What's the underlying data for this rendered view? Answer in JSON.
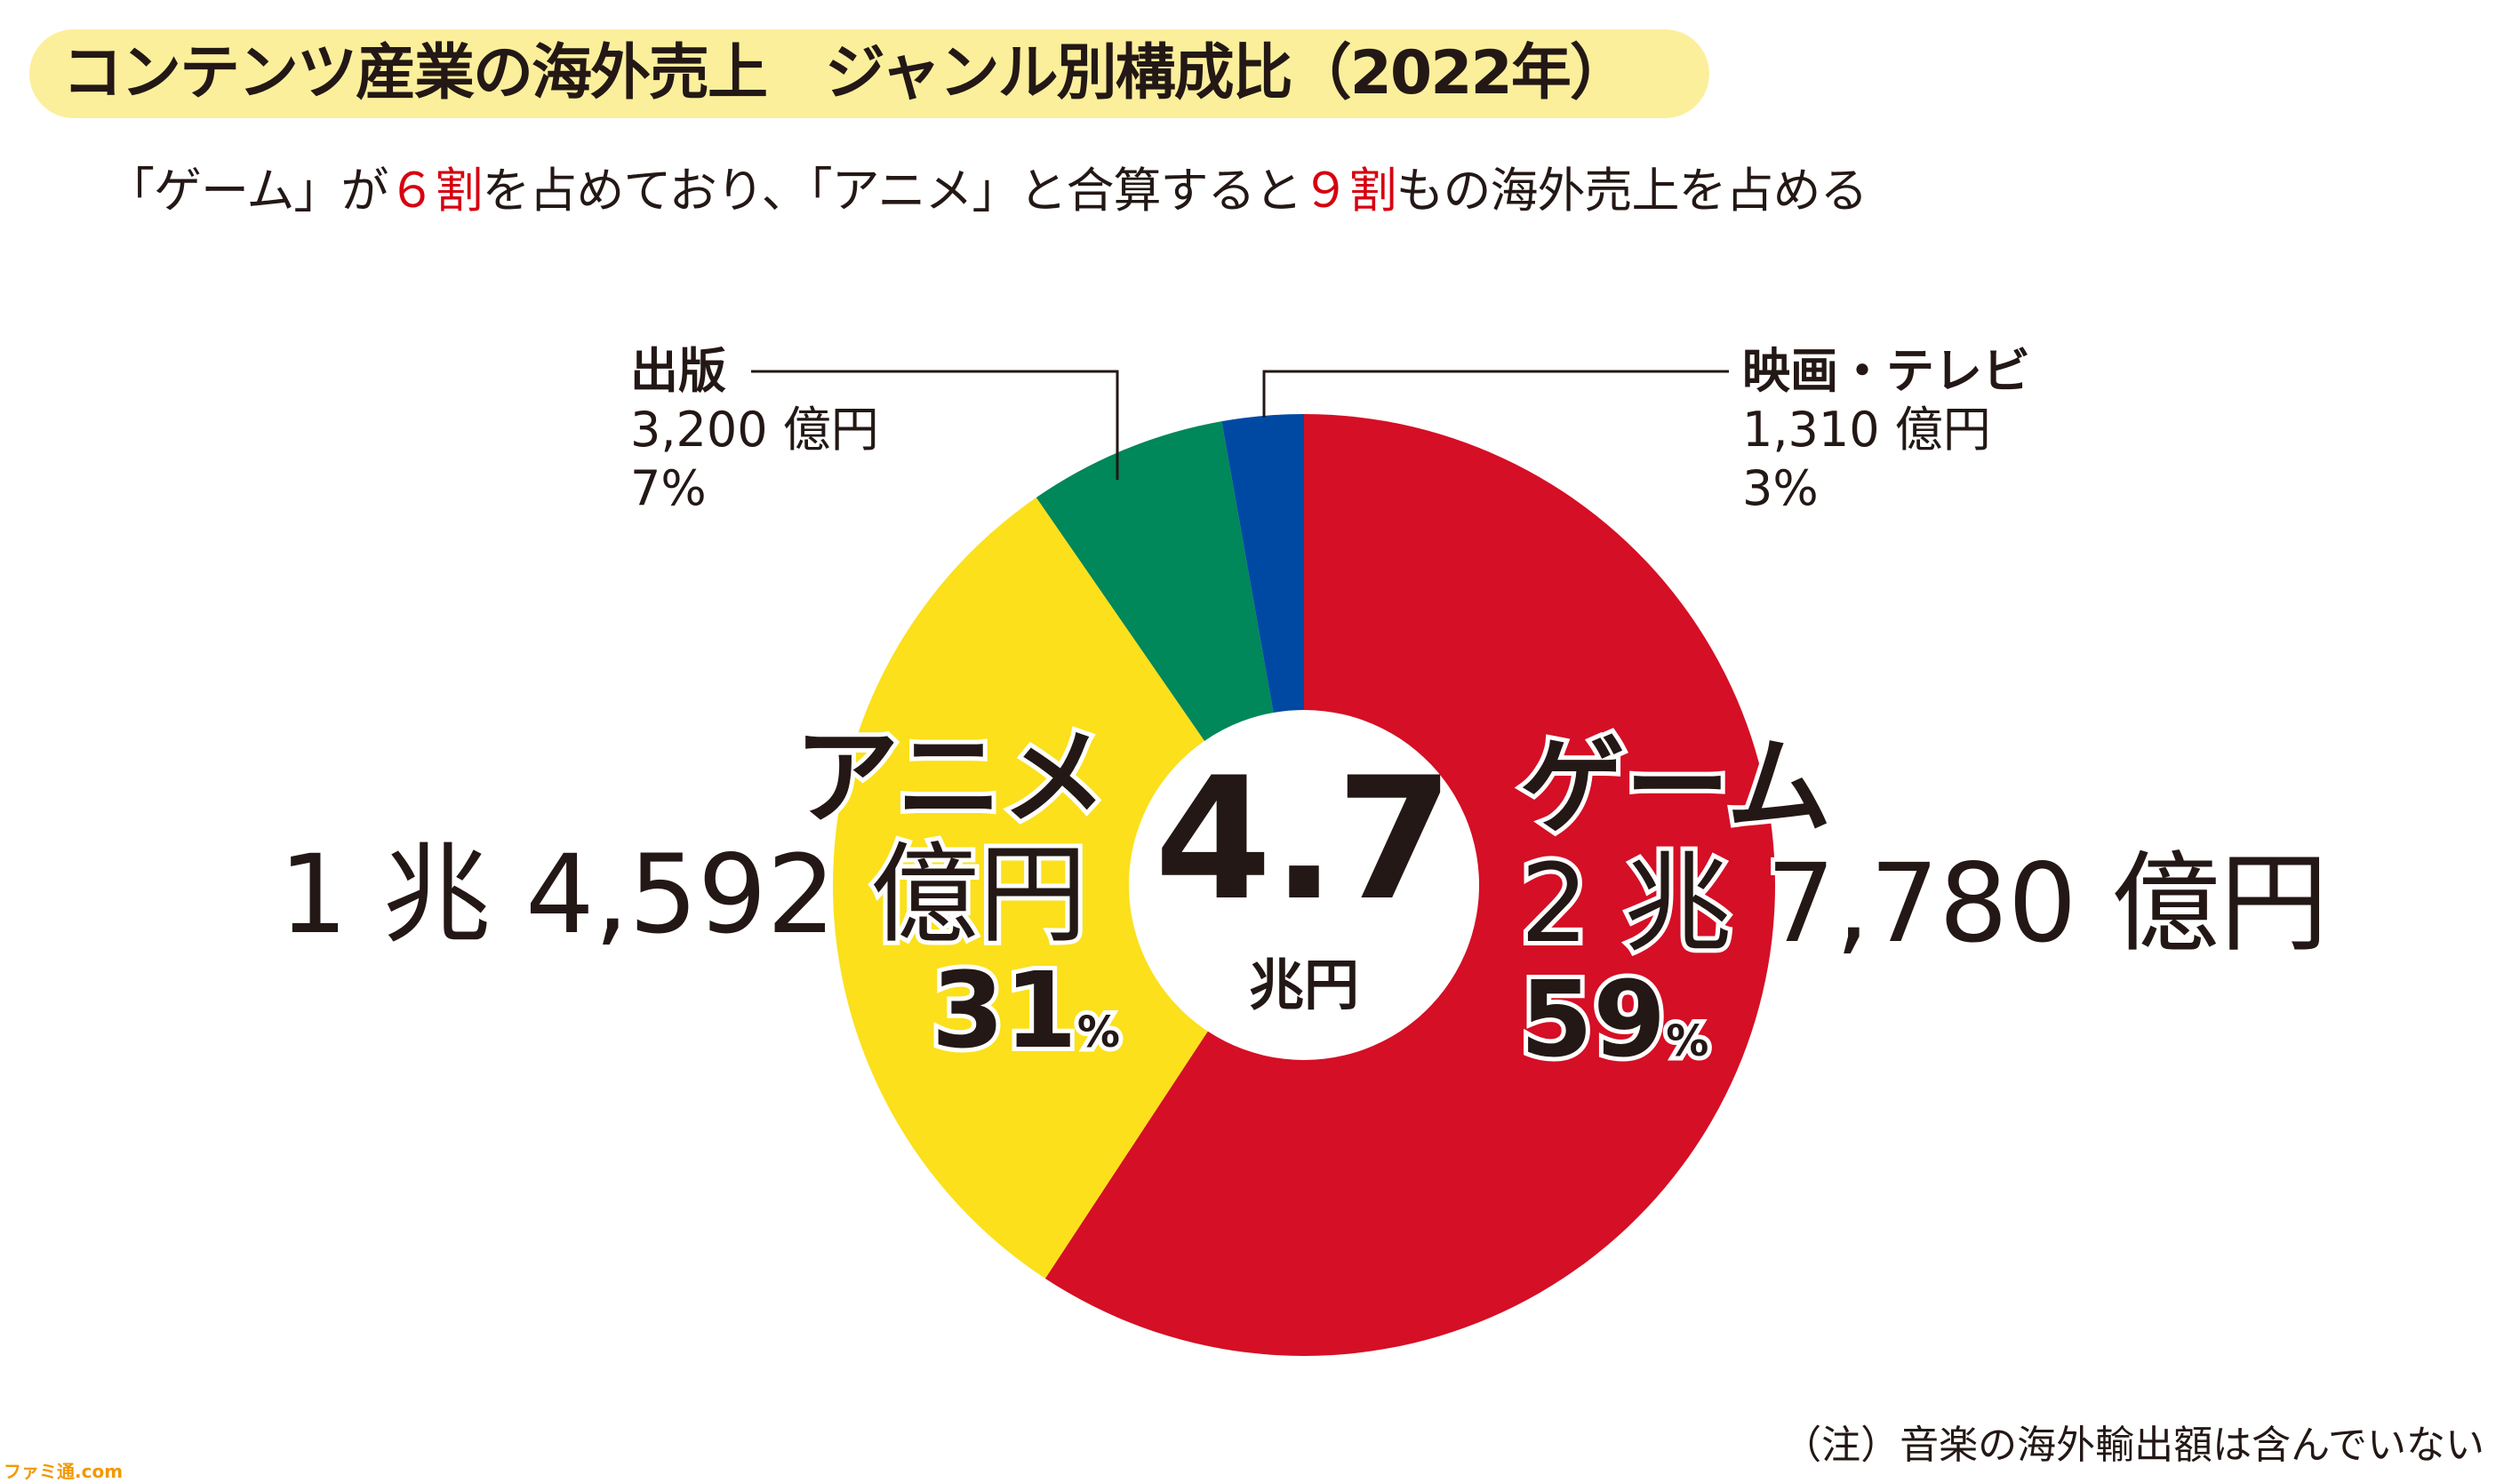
{
  "title": "コンテンツ産業の海外売上　ジャンル別構成比（2022年）",
  "subtitle": {
    "part1": "「ゲーム」が",
    "hl1": "６割",
    "part2": "を占めており、「アニメ」と合算すると",
    "hl2": "９割",
    "part3": "もの海外売上を占める"
  },
  "colors": {
    "title_bg": "#fbef9c",
    "highlight": "#d7000f"
  },
  "chart_data": {
    "type": "pie",
    "donut": true,
    "start": "top",
    "direction": "clockwise",
    "center_label": {
      "value": "4.7",
      "unit": "兆円"
    },
    "slices": [
      {
        "name": "ゲーム",
        "amount": "2 兆 7,780 億円",
        "value": 27780,
        "percent": "59",
        "color": "#d50f25"
      },
      {
        "name": "アニメ",
        "amount": "1 兆 4,592 億円",
        "value": 14592,
        "percent": "31",
        "color": "#fbe01b"
      },
      {
        "name": "出版",
        "amount": "3,200 億円",
        "value": 3200,
        "percent": "7%",
        "color": "#00875a"
      },
      {
        "name": "映画・テレビ",
        "amount": "1,310 億円",
        "value": 1310,
        "percent": "3%",
        "color": "#0049a3"
      }
    ],
    "percent_sign": "%"
  },
  "note": "（注）音楽の海外輸出額は含んでいない",
  "logo": "ファミ通.com"
}
